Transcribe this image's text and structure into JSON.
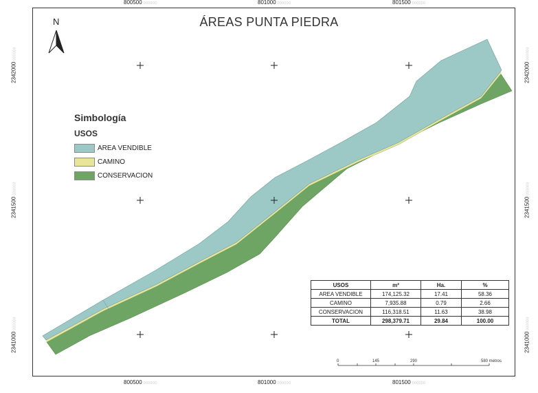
{
  "title": "ÁREAS PUNTA PIEDRA",
  "north_arrow": {
    "label": "N",
    "icon": "north-arrow-icon"
  },
  "grid": {
    "x_labels": [
      "800500",
      "801000",
      "801500"
    ],
    "y_labels": [
      "2342000",
      "2341500",
      "2341000"
    ],
    "unit_suffix": "000000"
  },
  "legend": {
    "title": "Simbología",
    "subtitle": "USOS",
    "items": [
      {
        "label": "AREA VENDIBLE",
        "color": "#9cc8c6"
      },
      {
        "label": "CAMINO",
        "color": "#e8e59a"
      },
      {
        "label": "CONSERVACION",
        "color": "#6fa564"
      }
    ]
  },
  "table": {
    "headers": [
      "USOS",
      "m²",
      "Ha.",
      "%"
    ],
    "rows": [
      [
        "AREA VENDIBLE",
        "174,125.32",
        "17.41",
        "58.36"
      ],
      [
        "CAMINO",
        "7,935.88",
        "0.79",
        "2.66"
      ],
      [
        "CONSERVACION",
        "116,318.51",
        "11.63",
        "38.98"
      ]
    ],
    "total": [
      "TOTAL",
      "298,379.71",
      "29.84",
      "100.00"
    ]
  },
  "scale_bar": {
    "labels": [
      "0",
      "145",
      "290",
      "580 metros"
    ]
  }
}
